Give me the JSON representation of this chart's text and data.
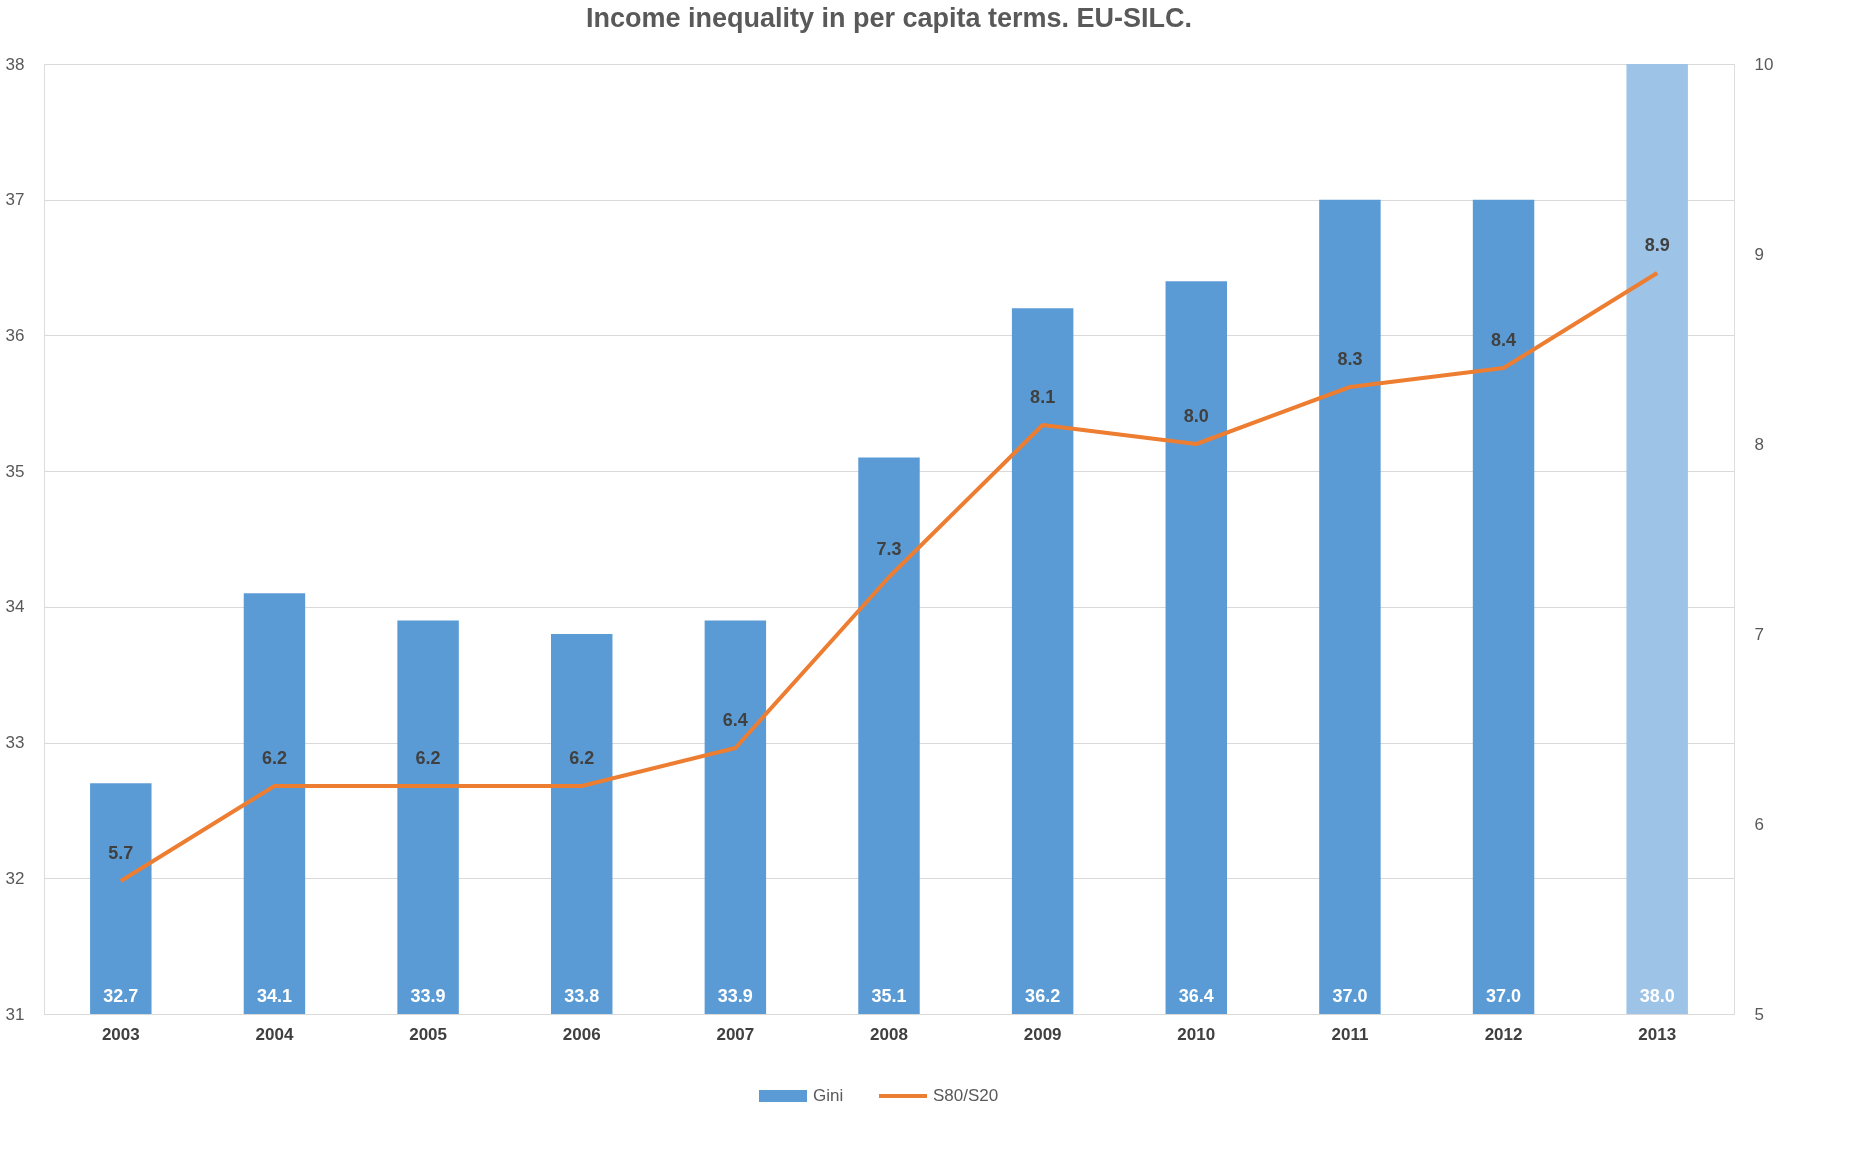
{
  "chart_data": {
    "type": "bar",
    "title": "Income inequality in per capita terms. EU-SILC.",
    "categories": [
      "2003",
      "2004",
      "2005",
      "2006",
      "2007",
      "2008",
      "2009",
      "2010",
      "2011",
      "2012",
      "2013"
    ],
    "series": [
      {
        "name": "Gini",
        "color": "#5b9bd5",
        "colors": [
          "#5b9bd5",
          "#5b9bd5",
          "#5b9bd5",
          "#5b9bd5",
          "#5b9bd5",
          "#5b9bd5",
          "#5b9bd5",
          "#5b9bd5",
          "#5b9bd5",
          "#5b9bd5",
          "#9dc3e6"
        ],
        "values": [
          32.7,
          34.1,
          33.9,
          33.8,
          33.9,
          35.1,
          36.2,
          36.4,
          37.0,
          37.0,
          38.0
        ],
        "value_labels": [
          "32.7",
          "34.1",
          "33.9",
          "33.8",
          "33.9",
          "35.1",
          "36.2",
          "36.4",
          "37.0",
          "37.0",
          "38.0"
        ]
      },
      {
        "name": "S80/S20",
        "type": "line",
        "axis": "y2",
        "color": "#ed7d31",
        "values": [
          5.7,
          6.2,
          6.2,
          6.2,
          6.4,
          7.3,
          8.1,
          8.0,
          8.3,
          8.4,
          8.9
        ],
        "value_labels": [
          "5.7",
          "6.2",
          "6.2",
          "6.2",
          "6.4",
          "7.3",
          "8.1",
          "8.0",
          "8.3",
          "8.4",
          "8.9"
        ]
      }
    ],
    "ylim": [
      31,
      38
    ],
    "yticks": [
      31,
      32,
      33,
      34,
      35,
      36,
      37,
      38
    ],
    "y2lim": [
      5,
      10
    ],
    "y2ticks": [
      5,
      6,
      7,
      8,
      9,
      10
    ],
    "grid": "y",
    "legend": "bottom",
    "marker": "none",
    "line_style": "solid"
  }
}
